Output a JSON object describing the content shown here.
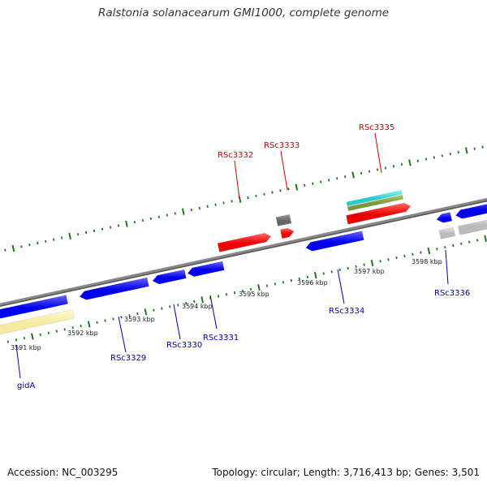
{
  "title": "Ralstonia solanacearum GMI1000, complete genome",
  "footer": {
    "accession": "Accession: NC_003295",
    "stats": "Topology: circular; Length: 3,716,413 bp; Genes: 3,501"
  },
  "colors": {
    "backbone": "#888888",
    "forward_gene": "#ee0000",
    "reverse_gene": "#0000ee",
    "other_forward": "#666666",
    "cds_other": "#bbbbbb",
    "rna_cyan": "#22cccc",
    "rna_olive": "#779933",
    "yellow_feature": "#f4eaa0",
    "tick": "#227722",
    "label_forward": "#cc0000",
    "label_reverse": "#0000aa"
  },
  "scale": {
    "kbp_labels": [
      "3591 kbp",
      "3592 kbp",
      "3593 kbp",
      "3594 kbp",
      "3595 kbp",
      "3596 kbp",
      "3597 kbp",
      "3598 kbp"
    ]
  },
  "genes": {
    "forward": [
      "RSc3332",
      "RSc3333",
      "RSc3335"
    ],
    "reverse": [
      "gidA",
      "RSc3329",
      "RSc3330",
      "RSc3331",
      "RSc3334",
      "RSc3336"
    ]
  }
}
